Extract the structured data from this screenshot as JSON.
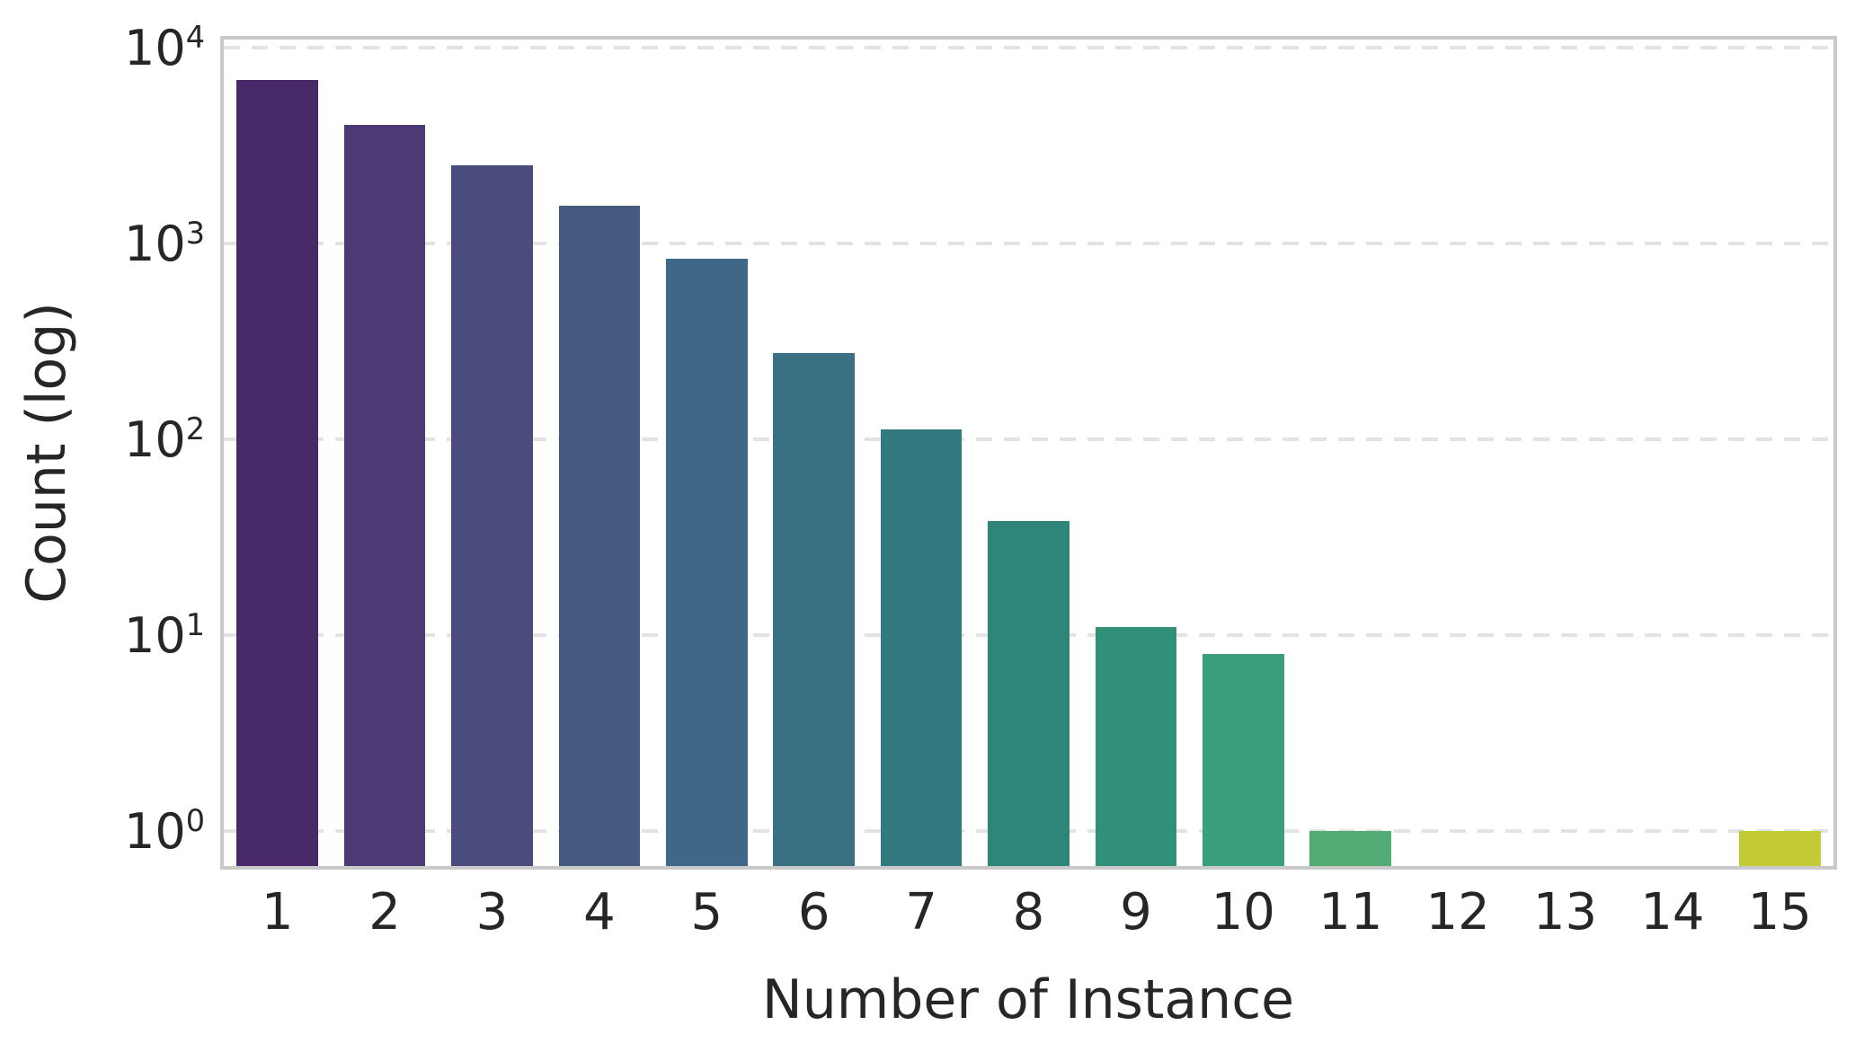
{
  "figure": {
    "background": "#ffffff",
    "text_color": "#262626",
    "grid_color": "#e3e3e3",
    "spine_color": "#c9c9c9"
  },
  "chart_data": {
    "type": "bar",
    "title": "",
    "xlabel": "Number of Instance",
    "ylabel": "Count (log)",
    "yscale": "log",
    "grid": true,
    "legend": false,
    "ylim_exp": [
      -0.18,
      4.04
    ],
    "ytick_base": "10",
    "ytick_exponents": [
      0,
      1,
      2,
      3,
      4
    ],
    "categories": [
      "1",
      "2",
      "3",
      "4",
      "5",
      "6",
      "7",
      "8",
      "9",
      "10",
      "11",
      "12",
      "13",
      "14",
      "15"
    ],
    "values": [
      6800,
      4000,
      2500,
      1550,
      830,
      275,
      112,
      38,
      11,
      8,
      1,
      0,
      0,
      0,
      1
    ],
    "bar_colors": [
      "#492a69",
      "#4b3a73",
      "#4b4b7e",
      "#465a80",
      "#3f6787",
      "#3a7283",
      "#337a80",
      "#2f8578",
      "#319078",
      "#3a9d7d",
      "#51ab72",
      null,
      null,
      null,
      "#c3ca33"
    ],
    "bar_width_fraction": 0.76
  }
}
